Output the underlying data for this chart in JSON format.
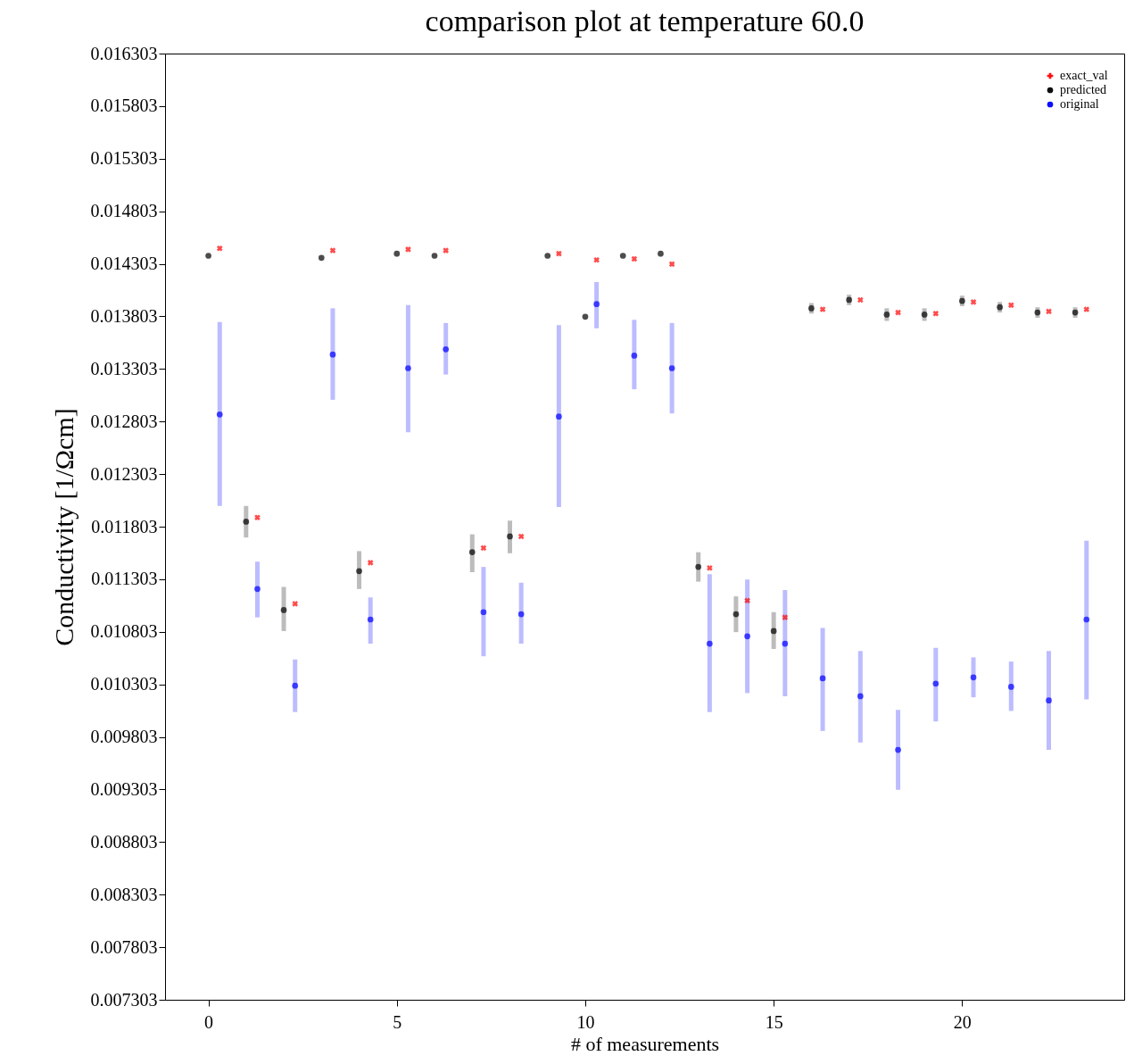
{
  "chart_data": {
    "type": "scatter",
    "title": "comparison plot at temperature 60.0",
    "xlabel": "# of measurements",
    "ylabel": "Conductivity [1/Ωcm]",
    "xlim": [
      -1.15,
      24.3
    ],
    "xticks": [
      0,
      5,
      10,
      15,
      20
    ],
    "ylim": [
      0.007303,
      0.016303
    ],
    "yticks": [
      0.007303,
      0.007803,
      0.008303,
      0.008803,
      0.009303,
      0.009803,
      0.010303,
      0.010803,
      0.011303,
      0.011803,
      0.012303,
      0.012803,
      0.013303,
      0.013803,
      0.014303,
      0.014803,
      0.015303,
      0.015803,
      0.016303
    ],
    "legend": "top right",
    "grid": false,
    "series": [
      {
        "name": "exact_val",
        "color": "#ff0000",
        "marker": "cross",
        "x": [
          0.3,
          1.3,
          2.3,
          3.3,
          4.3,
          5.3,
          6.3,
          7.3,
          8.3,
          9.3,
          10.3,
          11.3,
          12.3,
          13.3,
          14.3,
          15.3,
          16.3,
          17.3,
          18.3,
          19.3,
          20.3,
          21.3,
          22.3,
          23.3
        ],
        "values": [
          0.01445,
          0.01189,
          0.01107,
          0.01443,
          0.01146,
          0.01444,
          0.01443,
          0.0116,
          0.01171,
          0.0144,
          0.01434,
          0.01435,
          0.0143,
          0.01141,
          0.0111,
          0.01094,
          0.01387,
          0.01396,
          0.01384,
          0.01383,
          0.01394,
          0.01391,
          0.01385,
          0.01387
        ]
      },
      {
        "name": "predicted",
        "color": "#000000",
        "marker": "circle",
        "x": [
          0,
          1,
          2,
          3,
          4,
          5,
          6,
          7,
          8,
          9,
          10,
          11,
          12,
          13,
          14,
          15,
          16,
          17,
          18,
          19,
          20,
          21,
          22,
          23
        ],
        "values": [
          0.01438,
          0.01185,
          0.01101,
          0.01436,
          0.01138,
          0.0144,
          0.01438,
          0.01156,
          0.01171,
          0.01438,
          0.0138,
          0.01438,
          0.0144,
          0.01142,
          0.01097,
          0.01081,
          0.01388,
          0.01396,
          0.01382,
          0.01382,
          0.01395,
          0.01389,
          0.01384,
          0.01384
        ],
        "errors": [
          null,
          [
            0.0117,
            0.012
          ],
          [
            0.01081,
            0.01123
          ],
          null,
          [
            0.01121,
            0.01157
          ],
          null,
          null,
          [
            0.01137,
            0.01173
          ],
          [
            0.01155,
            0.01186
          ],
          null,
          null,
          null,
          null,
          [
            0.01128,
            0.01156
          ],
          [
            0.0108,
            0.01114
          ],
          [
            0.01064,
            0.01099
          ],
          [
            0.01383,
            0.01393
          ],
          [
            0.01391,
            0.01401
          ],
          [
            0.01376,
            0.01388
          ],
          [
            0.01376,
            0.01388
          ],
          [
            0.0139,
            0.014
          ],
          [
            0.01384,
            0.01394
          ],
          [
            0.01379,
            0.01389
          ],
          [
            0.01379,
            0.01389
          ]
        ]
      },
      {
        "name": "original",
        "color": "#0000ff",
        "marker": "circle",
        "x": [
          0.3,
          1.3,
          2.3,
          3.3,
          4.3,
          5.3,
          6.3,
          7.3,
          8.3,
          9.3,
          10.3,
          11.3,
          12.3,
          13.3,
          14.3,
          15.3,
          16.3,
          17.3,
          18.3,
          19.3,
          20.3,
          21.3,
          22.3,
          23.3
        ],
        "values": [
          0.01287,
          0.01121,
          0.01029,
          0.01344,
          0.01092,
          0.01331,
          0.01349,
          0.01099,
          0.01097,
          0.01285,
          0.01392,
          0.01343,
          0.01331,
          0.01069,
          0.01076,
          0.01069,
          0.01036,
          0.01019,
          0.00968,
          0.01031,
          0.01037,
          0.01028,
          0.01015,
          0.01092
        ],
        "errors": [
          [
            0.012,
            0.01375
          ],
          [
            0.01094,
            0.01147
          ],
          [
            0.01004,
            0.01054
          ],
          [
            0.01301,
            0.01388
          ],
          [
            0.01069,
            0.01113
          ],
          [
            0.0127,
            0.01391
          ],
          [
            0.01325,
            0.01374
          ],
          [
            0.01057,
            0.01142
          ],
          [
            0.01069,
            0.01127
          ],
          [
            0.01199,
            0.01372
          ],
          [
            0.01369,
            0.01413
          ],
          [
            0.01311,
            0.01377
          ],
          [
            0.01288,
            0.01374
          ],
          [
            0.01004,
            0.01135
          ],
          [
            0.01022,
            0.0113
          ],
          [
            0.01019,
            0.0112
          ],
          [
            0.00986,
            0.01084
          ],
          [
            0.00975,
            0.01062
          ],
          [
            0.0093,
            0.01006
          ],
          [
            0.00995,
            0.01065
          ],
          [
            0.01018,
            0.01056
          ],
          [
            0.01005,
            0.01052
          ],
          [
            0.00968,
            0.01062
          ],
          [
            0.01016,
            0.01167
          ]
        ]
      }
    ]
  }
}
